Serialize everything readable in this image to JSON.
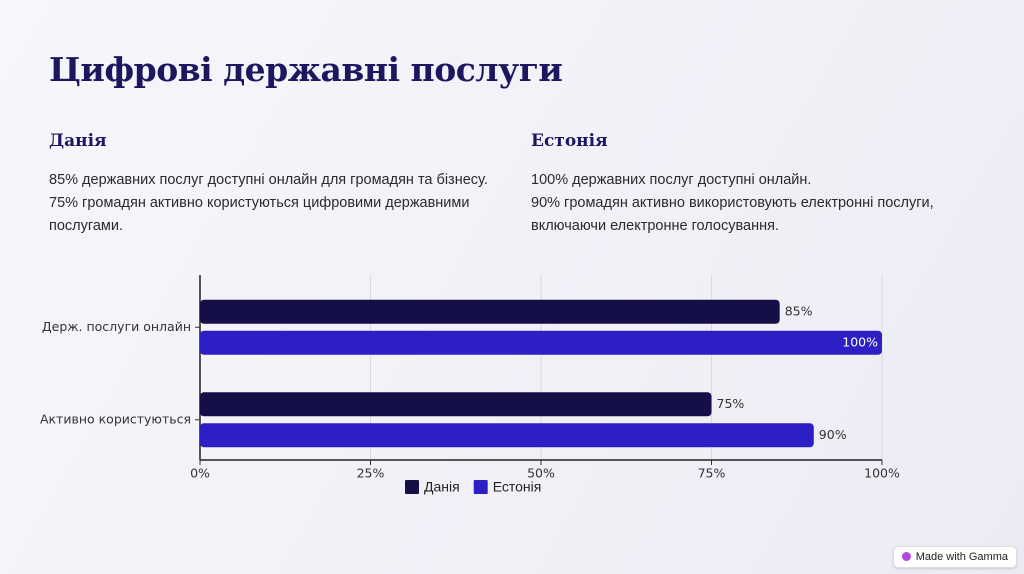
{
  "header": {
    "title": "Цифрові державні послуги"
  },
  "columns": [
    {
      "heading": "Данія",
      "lines": [
        "85% державних послуг доступні онлайн для громадян та бізнесу.",
        "75% громадян активно користуються цифровими державними послугами."
      ]
    },
    {
      "heading": "Естонія",
      "lines": [
        "100% державних послуг доступні онлайн.",
        "90% громадян активно використовують електронні послуги, включаючи електронне голосування."
      ]
    }
  ],
  "chart_data": {
    "type": "bar",
    "orientation": "horizontal",
    "categories": [
      "Держ. послуги онлайн",
      "Активно користуються"
    ],
    "series": [
      {
        "name": "Данія",
        "color": "#150f47",
        "values": [
          85,
          75
        ],
        "value_labels": [
          "85%",
          "75%"
        ]
      },
      {
        "name": "Естонія",
        "color": "#2c1fc4",
        "values": [
          100,
          90
        ],
        "value_labels": [
          "100%",
          "90%"
        ]
      }
    ],
    "xlim": [
      0,
      100
    ],
    "xticks": [
      {
        "value": 0,
        "label": "0%"
      },
      {
        "value": 25,
        "label": "25%"
      },
      {
        "value": 50,
        "label": "50%"
      },
      {
        "value": 75,
        "label": "75%"
      },
      {
        "value": 100,
        "label": "100%"
      }
    ],
    "grid": true,
    "legend": "bottom"
  },
  "badge": {
    "text": "Made with Gamma"
  }
}
